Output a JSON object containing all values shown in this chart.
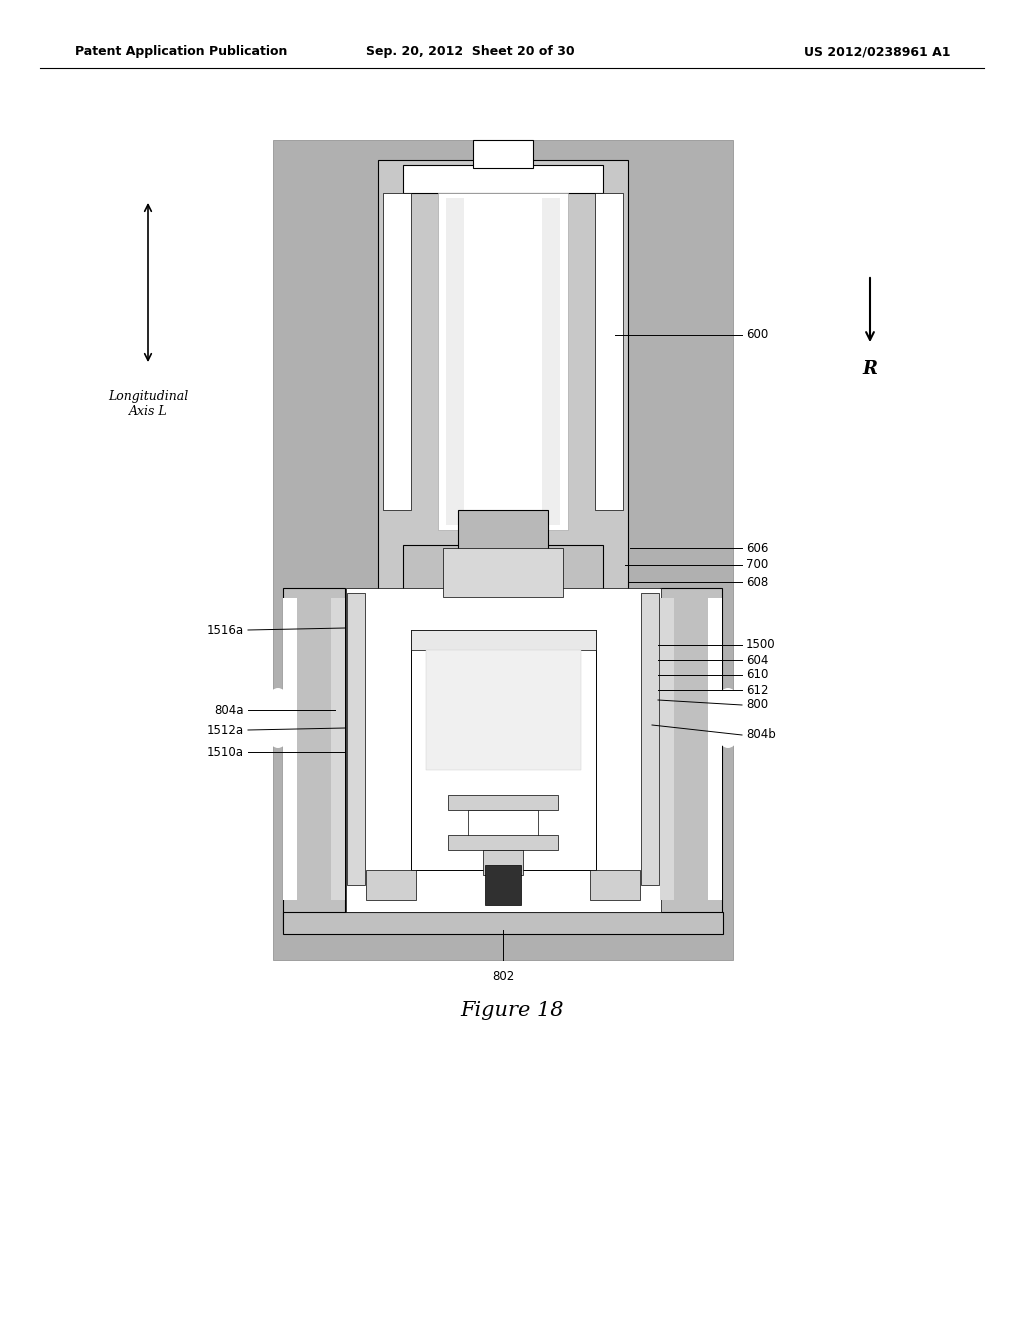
{
  "header_left": "Patent Application Publication",
  "header_center": "Sep. 20, 2012  Sheet 20 of 30",
  "header_right": "US 2012/0238961 A1",
  "figure_label": "Figure 18",
  "left_label": "Longitudinal\nAxis L",
  "right_label": "R",
  "bg_color": "#ffffff",
  "gray_bg": "#aaaaaa",
  "label_fs": 8.5
}
